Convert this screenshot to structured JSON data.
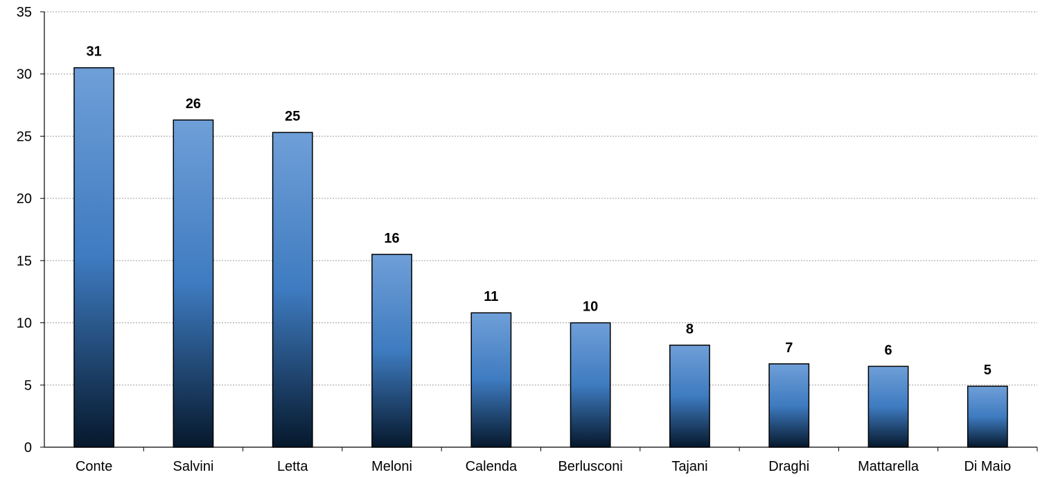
{
  "chart_data": {
    "type": "bar",
    "categories": [
      "Conte",
      "Salvini",
      "Letta",
      "Meloni",
      "Calenda",
      "Berlusconi",
      "Tajani",
      "Draghi",
      "Mattarella",
      "Di Maio"
    ],
    "values": [
      30.5,
      26.3,
      25.3,
      15.5,
      10.8,
      10.0,
      8.2,
      6.7,
      6.5,
      4.9
    ],
    "data_labels": [
      "31",
      "26",
      "25",
      "16",
      "11",
      "10",
      "8",
      "7",
      "6",
      "5"
    ],
    "ylim": [
      0,
      35
    ],
    "yticks": [
      0,
      5,
      10,
      15,
      20,
      25,
      30,
      35
    ],
    "ytick_labels": [
      "0",
      "5",
      "10",
      "15",
      "20",
      "25",
      "30",
      "35"
    ],
    "grid": true,
    "legend": "none",
    "colors": {
      "bar_top": "#6f9fd8",
      "bar_mid": "#3e7bc0",
      "bar_bottom": "#06182c",
      "bar_stroke": "#000000",
      "grid": "#9a9a9a",
      "axis": "#000000"
    }
  }
}
